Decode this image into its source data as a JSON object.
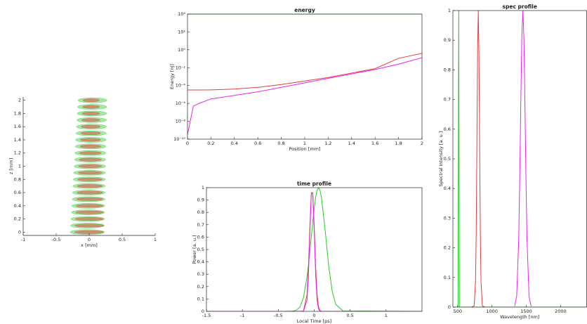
{
  "chart_data": [
    {
      "type": "scatter",
      "xlabel": "x [mm]",
      "ylabel": "z [mm]",
      "xlim": [
        -1,
        1
      ],
      "xticks": [
        -1,
        -0.5,
        0,
        0.5,
        1
      ],
      "ylim": [
        -0.05,
        2.05
      ],
      "yticks": [
        0,
        0.2,
        0.4,
        0.6,
        0.8,
        1,
        1.2,
        1.4,
        1.6,
        1.8,
        2
      ],
      "box": false,
      "series": [
        {
          "color": "#33cc33",
          "x": [
            -0.03,
            -0.026,
            -0.022,
            -0.018,
            -0.014,
            -0.01,
            -0.006,
            -0.002,
            0.002,
            0.006,
            0.01,
            0.014,
            0.018,
            0.022,
            0.026,
            0.03,
            0.034,
            0.038,
            0.042,
            0.046,
            0.05
          ],
          "values": [
            0,
            0.1,
            0.2,
            0.3,
            0.4,
            0.5,
            0.6,
            0.7,
            0.8,
            0.9,
            1,
            1.1,
            1.2,
            1.3,
            1.4,
            1.5,
            1.6,
            1.7,
            1.8,
            1.9,
            2
          ],
          "widths": [
            0.52,
            0.516,
            0.512,
            0.508,
            0.504,
            0.5,
            0.496,
            0.492,
            0.488,
            0.484,
            0.48,
            0.476,
            0.472,
            0.468,
            0.464,
            0.46,
            0.456,
            0.452,
            0.448,
            0.444,
            0.44
          ]
        },
        {
          "color": "#e04040",
          "x": [
            0,
            0.002,
            0.003,
            0.005,
            0.006,
            0.008,
            0.009,
            0.011,
            0.012,
            0.014,
            0.015,
            0.017,
            0.018,
            0.02,
            0.021,
            0.023,
            0.024,
            0.026,
            0.027,
            0.029,
            0.03
          ],
          "values": [
            0,
            0.1,
            0.2,
            0.3,
            0.4,
            0.5,
            0.6,
            0.7,
            0.8,
            0.9,
            1,
            1.1,
            1.2,
            1.3,
            1.4,
            1.5,
            1.6,
            1.7,
            1.8,
            1.9,
            2
          ],
          "widths": [
            0.45,
            0.44,
            0.43,
            0.42,
            0.41,
            0.4,
            0.39,
            0.38,
            0.37,
            0.36,
            0.35,
            0.34,
            0.33,
            0.32,
            0.31,
            0.3,
            0.29,
            0.28,
            0.27,
            0.26,
            0.25
          ]
        }
      ]
    },
    {
      "type": "line",
      "title": "energy",
      "xlabel": "Position [mm]",
      "ylabel": "Energy [nJ]",
      "xlim": [
        0,
        2
      ],
      "xticks": [
        0,
        0.2,
        0.4,
        0.6,
        0.8,
        1,
        1.2,
        1.4,
        1.6,
        1.8,
        2
      ],
      "ylim": [
        1e-10,
        10000
      ],
      "log_y": true,
      "box": true,
      "yticks": [
        {
          "value": 1e-10,
          "label": "10⁻¹⁰"
        },
        {
          "value": 1e-08,
          "label": "10⁻⁸"
        },
        {
          "value": 1e-06,
          "label": "10⁻⁶"
        },
        {
          "value": 0.0001,
          "label": "10⁻⁴"
        },
        {
          "value": 0.01,
          "label": "10⁻²"
        },
        {
          "value": 1,
          "label": "10⁰"
        },
        {
          "value": 100,
          "label": "10²"
        },
        {
          "value": 10000,
          "label": "10⁴"
        }
      ],
      "x": [
        0,
        0.05,
        0.1,
        0.2,
        0.4,
        0.6,
        0.8,
        1,
        1.2,
        1.4,
        1.6,
        1.8,
        2
      ],
      "series": [
        {
          "color": "#22cc22",
          "values": [
            10000,
            10000,
            10000,
            10000,
            10000,
            10000,
            10000,
            10000,
            10000,
            10000,
            10000,
            10000,
            10000
          ]
        },
        {
          "color": "#e04040",
          "values": [
            3.2e-05,
            3.2e-05,
            3.2e-05,
            3.3e-05,
            4e-05,
            6.3e-05,
            0.00013,
            0.00032,
            0.00079,
            0.0025,
            0.0079,
            0.11,
            0.4
          ]
        },
        {
          "color": "#ee22ee",
          "values": [
            3e-10,
            5e-07,
            1e-06,
            3.2e-06,
            7.9e-06,
            2e-05,
            6.3e-05,
            0.0002,
            0.00063,
            0.002,
            0.0063,
            0.025,
            0.13
          ]
        }
      ]
    },
    {
      "type": "line",
      "title": "time profile",
      "xlabel": "Local Time [ps]",
      "ylabel": "Power [a. u.]",
      "xlim": [
        -1.5,
        1.5
      ],
      "xticks": [
        -1.5,
        -1,
        -0.5,
        0,
        0.5,
        1
      ],
      "ylim": [
        0,
        1
      ],
      "yticks": [
        0,
        0.1,
        0.2,
        0.3,
        0.4,
        0.5,
        0.6,
        0.7,
        0.8,
        0.9,
        1
      ],
      "box": true,
      "x": [
        -1.5,
        -0.4,
        -0.3,
        -0.25,
        -0.2,
        -0.15,
        -0.1,
        -0.08,
        -0.06,
        -0.04,
        -0.02,
        0,
        0.02,
        0.04,
        0.06,
        0.08,
        0.1,
        0.15,
        0.2,
        0.25,
        0.3,
        0.4,
        1.5
      ],
      "series": [
        {
          "color": "#22cc22",
          "values": [
            0,
            0,
            0.002,
            0.008,
            0.034,
            0.11,
            0.28,
            0.375,
            0.487,
            0.607,
            0.726,
            0.835,
            0.923,
            0.98,
            1,
            0.98,
            0.923,
            0.667,
            0.375,
            0.164,
            0.056,
            0.003,
            0
          ]
        },
        {
          "color": "#e04040",
          "values": [
            0,
            0,
            0,
            0,
            0,
            0.003,
            0.135,
            0.36,
            0.69,
            0.96,
            0.96,
            0.69,
            0.36,
            0.135,
            0.037,
            0.007,
            0,
            0,
            0,
            0,
            0,
            0,
            0
          ]
        },
        {
          "color": "#ee22ee",
          "values": [
            0,
            0,
            0,
            0,
            0,
            0,
            0.09,
            0.295,
            0.644,
            0.95,
            0.95,
            0.644,
            0.295,
            0.09,
            0.019,
            0.003,
            0,
            0,
            0,
            0,
            0,
            0,
            0
          ]
        }
      ]
    },
    {
      "type": "line",
      "title": "spec profile",
      "xlabel": "Wavelength [nm]",
      "ylabel": "Spectral Intensity [a. u.]",
      "xlim": [
        430,
        2380
      ],
      "xticks": [
        500,
        1000,
        1500,
        2000
      ],
      "ylim": [
        0,
        1
      ],
      "yticks": [
        0,
        0.1,
        0.2,
        0.3,
        0.4,
        0.5,
        0.6,
        0.7,
        0.8,
        0.9,
        1
      ],
      "box": true,
      "series": [
        {
          "color": "#22cc22",
          "x": [
            430,
            505,
            510,
            515,
            520,
            525,
            2380
          ],
          "values": [
            0,
            0,
            0.5,
            1,
            0.5,
            0,
            0
          ]
        },
        {
          "color": "#e04040",
          "x": [
            700,
            740,
            760,
            770,
            780,
            790,
            800,
            810,
            820,
            830,
            840,
            860,
            900
          ],
          "values": [
            0,
            0.004,
            0.085,
            0.25,
            0.54,
            0.857,
            1,
            0.857,
            0.54,
            0.25,
            0.085,
            0.004,
            0
          ]
        },
        {
          "color": "#ee22ee",
          "x": [
            1330,
            1360,
            1390,
            1405,
            1420,
            1435,
            1450,
            1465,
            1480,
            1495,
            1510,
            1540,
            1570
          ],
          "values": [
            0.003,
            0.037,
            0.23,
            0.44,
            0.69,
            0.91,
            1,
            0.91,
            0.69,
            0.44,
            0.23,
            0.037,
            0.003
          ]
        }
      ]
    }
  ]
}
